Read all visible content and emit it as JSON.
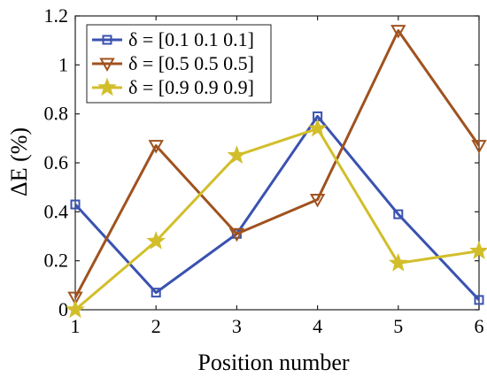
{
  "chart_data": {
    "type": "line",
    "x": [
      1,
      2,
      3,
      4,
      5,
      6
    ],
    "xlabel": "Position number",
    "ylabel": "ΔE (%)",
    "xlim": [
      1,
      6
    ],
    "ylim": [
      0,
      1.2
    ],
    "xticks": [
      "1",
      "2",
      "3",
      "4",
      "5",
      "6"
    ],
    "yticks": [
      "0",
      "0.2",
      "0.4",
      "0.6",
      "0.8",
      "1",
      "1.2"
    ],
    "grid": false,
    "legend_position": "top-left",
    "series": [
      {
        "name": "δ = [0.1 0.1 0.1]",
        "values": [
          0.43,
          0.07,
          0.31,
          0.79,
          0.39,
          0.04
        ],
        "color": "#3a52b0",
        "marker": "square"
      },
      {
        "name": "δ = [0.5 0.5 0.5]",
        "values": [
          0.05,
          0.67,
          0.31,
          0.45,
          1.14,
          0.67
        ],
        "color": "#a0521e",
        "marker": "triangle-down"
      },
      {
        "name": "δ = [0.9 0.9 0.9]",
        "values": [
          0.0,
          0.28,
          0.63,
          0.74,
          0.19,
          0.24
        ],
        "color": "#d2be2a",
        "marker": "star"
      }
    ]
  }
}
